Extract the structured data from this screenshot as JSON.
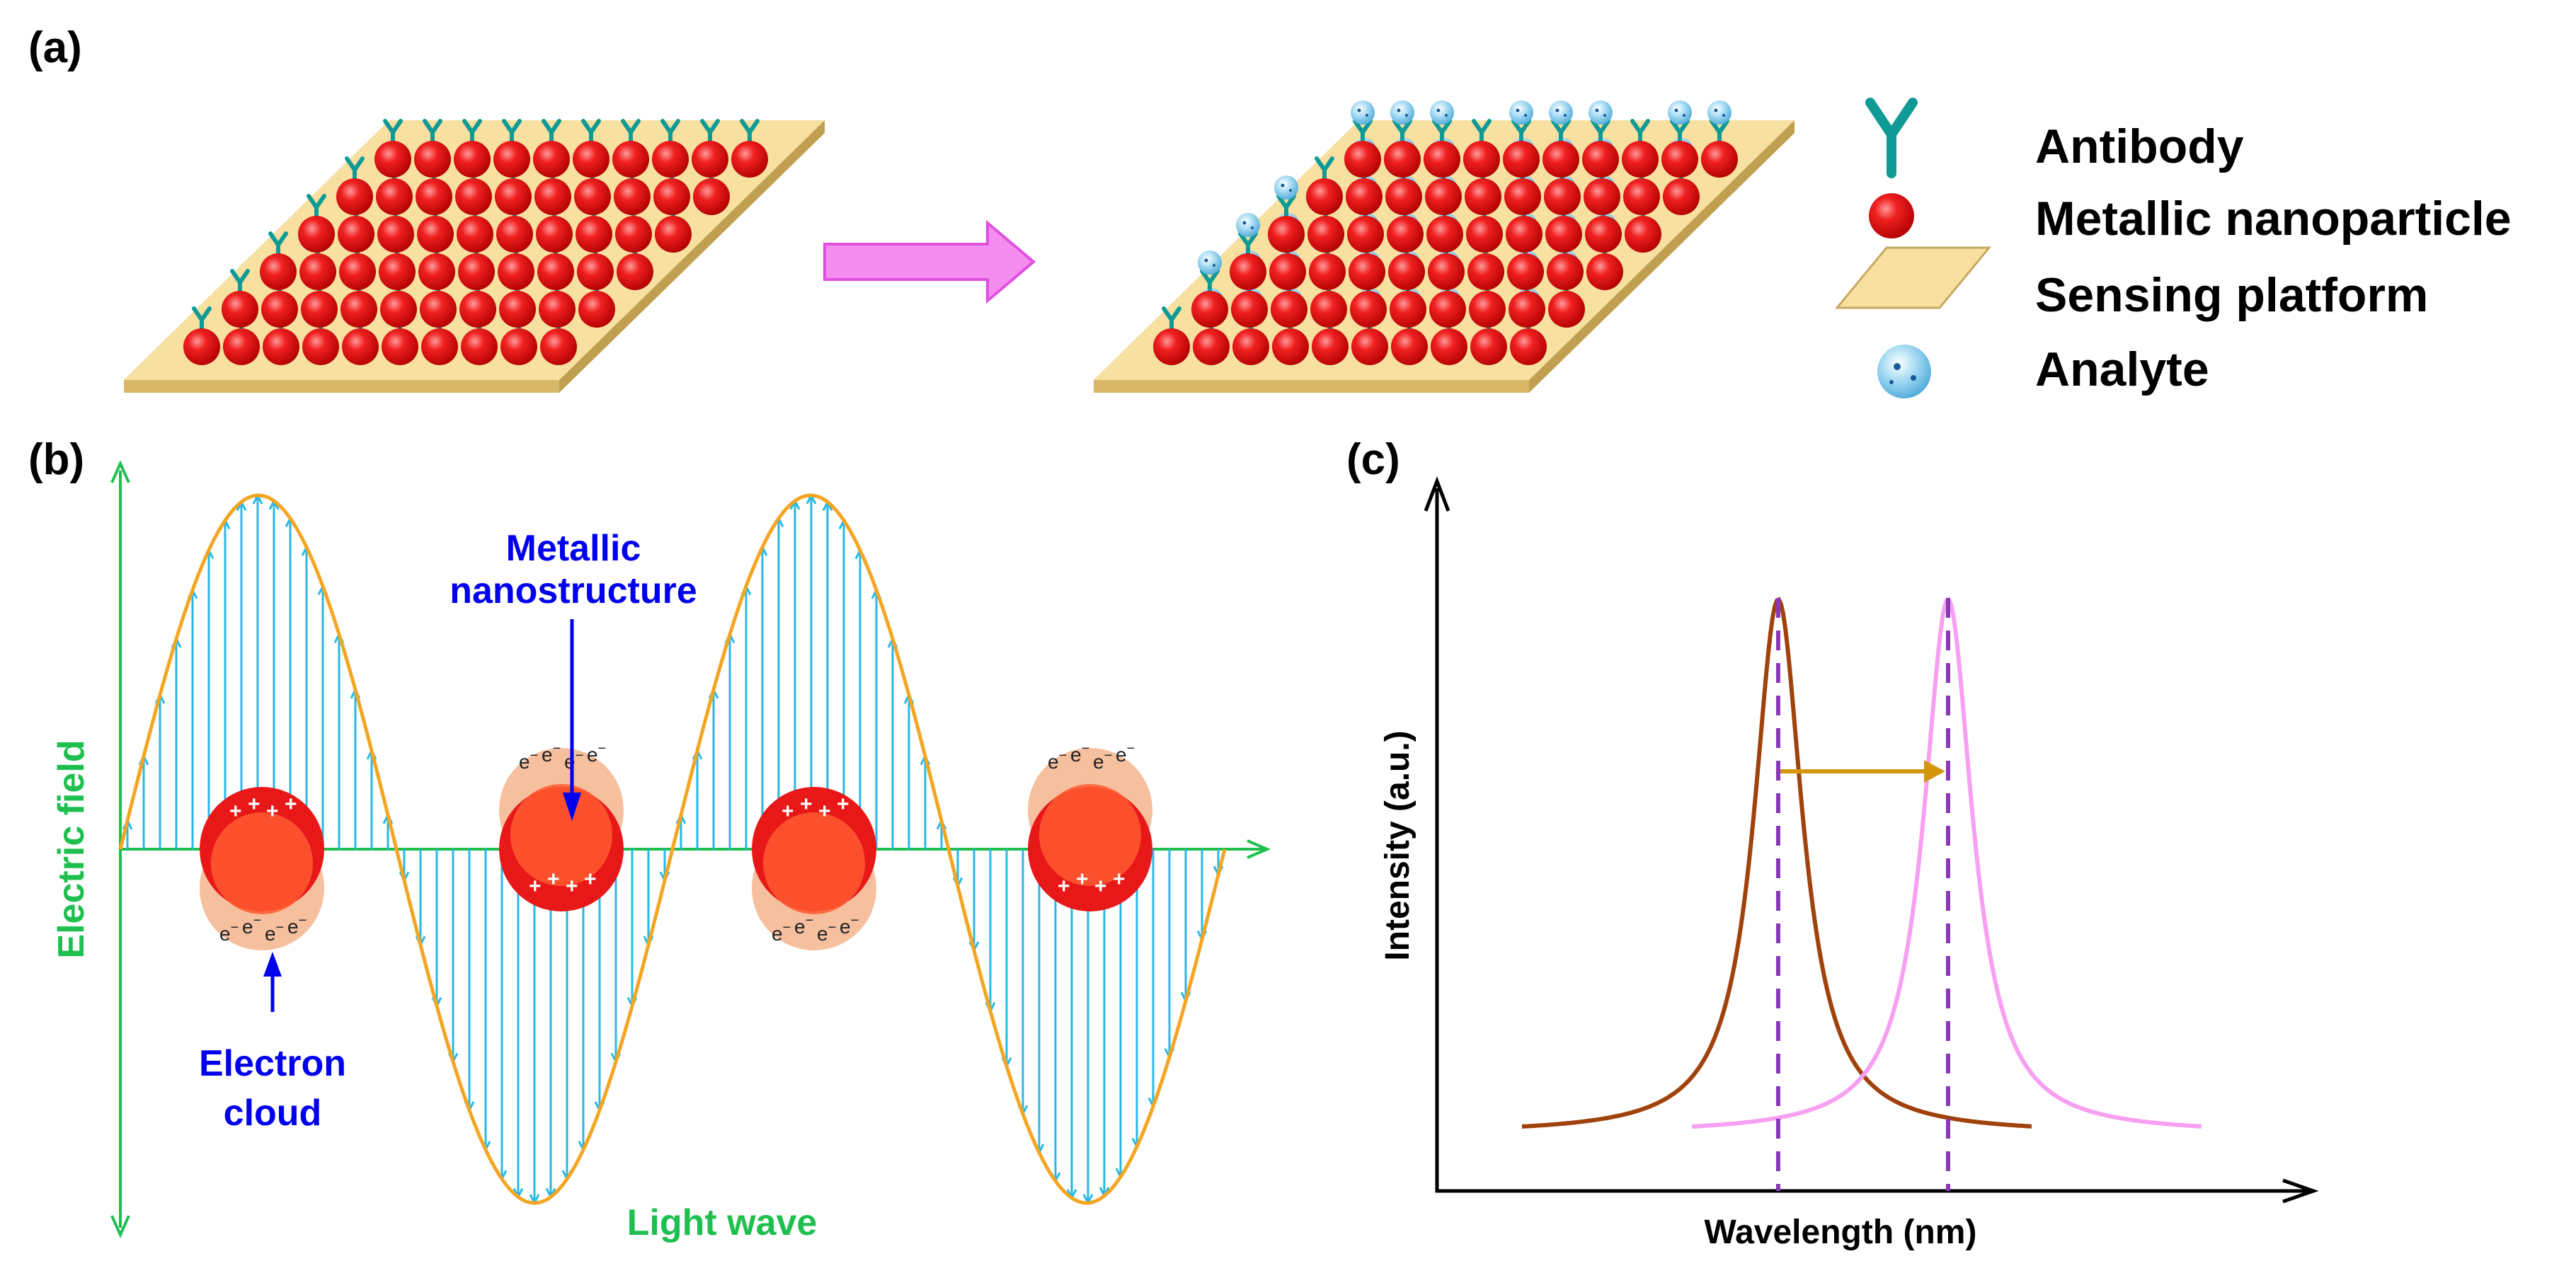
{
  "panel_a": {
    "label": "(a)",
    "legend": [
      {
        "icon": "antibody-icon",
        "text": "Antibody"
      },
      {
        "icon": "metallic-nanoparticle-icon",
        "text": "Metallic nanoparticle"
      },
      {
        "icon": "sensing-platform-icon",
        "text": "Sensing platform"
      },
      {
        "icon": "analyte-icon",
        "text": "Analyte"
      }
    ],
    "colors": {
      "antibody": "#0f9a96",
      "nanoparticle": "#e01010",
      "platform": "#f7e0a0",
      "analyte": "#7ac8ec",
      "arrow": "#f58cf0"
    }
  },
  "panel_b": {
    "label": "(b)",
    "metallic_nanostructure_line1": "Metallic",
    "metallic_nanostructure_line2": "nanostructure",
    "electron_cloud_line1": "Electron",
    "electron_cloud_line2": "cloud",
    "x_axis_label": "Light wave",
    "y_axis_label": "Electric field",
    "plus_sign": "+",
    "electron_sign": "e",
    "electron_superscript": "−",
    "colors": {
      "wave": "#f4a623",
      "field_arrows": "#2ab8e6",
      "axes": "#1fbf4f",
      "labels": "#0000ee",
      "particle": "#e81818",
      "cloud": "#f5b894"
    }
  },
  "panel_c": {
    "label": "(c)",
    "xlabel": "Wavelength (nm)",
    "ylabel": "Intensity (a.u.)",
    "colors": {
      "before": "#a0420c",
      "after": "#f7a0f2",
      "dashed": "#8a38b8",
      "shift_arrow": "#d4960c"
    }
  }
}
